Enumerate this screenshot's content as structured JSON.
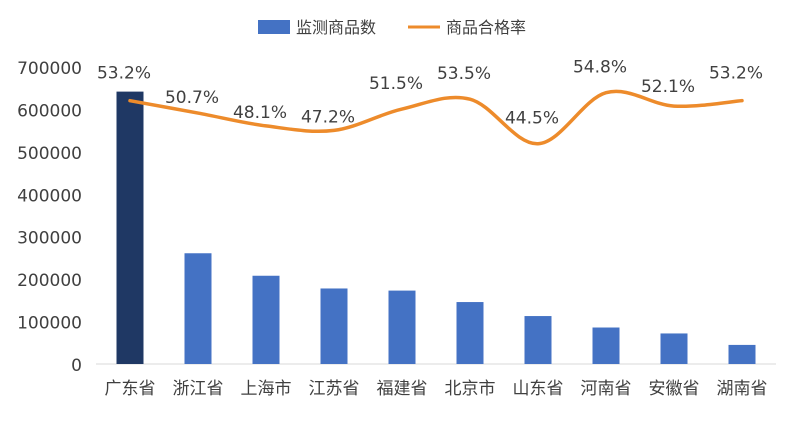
{
  "chart_data": {
    "type": "bar+line",
    "categories": [
      "广东省",
      "浙江省",
      "上海市",
      "江苏省",
      "福建省",
      "北京市",
      "山东省",
      "河南省",
      "安徽省",
      "湖南省"
    ],
    "series": [
      {
        "name": "监测商品数",
        "type": "bar",
        "axis": "primary",
        "values": [
          642000,
          261000,
          208000,
          178000,
          173000,
          146000,
          113000,
          86000,
          72000,
          45000
        ],
        "color": "#4472C4",
        "highlight_color": "#1F3864",
        "highlight_index": 0
      },
      {
        "name": "商品合格率",
        "type": "line",
        "axis": "secondary",
        "smooth": true,
        "values": [
          53.2,
          50.7,
          48.1,
          47.2,
          51.5,
          53.5,
          44.5,
          54.8,
          52.1,
          53.2
        ],
        "labels": [
          "53.2%",
          "50.7%",
          "48.1%",
          "47.2%",
          "51.5%",
          "53.5%",
          "44.5%",
          "54.8%",
          "52.1%",
          "53.2%"
        ],
        "color": "#ED8B2B"
      }
    ],
    "ylim": [
      0,
      700000
    ],
    "yticks": [
      "0",
      "100000",
      "200000",
      "300000",
      "400000",
      "500000",
      "600000",
      "700000"
    ],
    "y2lim": [
      0,
      60
    ],
    "y2_visible": false,
    "grid": false,
    "legend_position": "top"
  }
}
